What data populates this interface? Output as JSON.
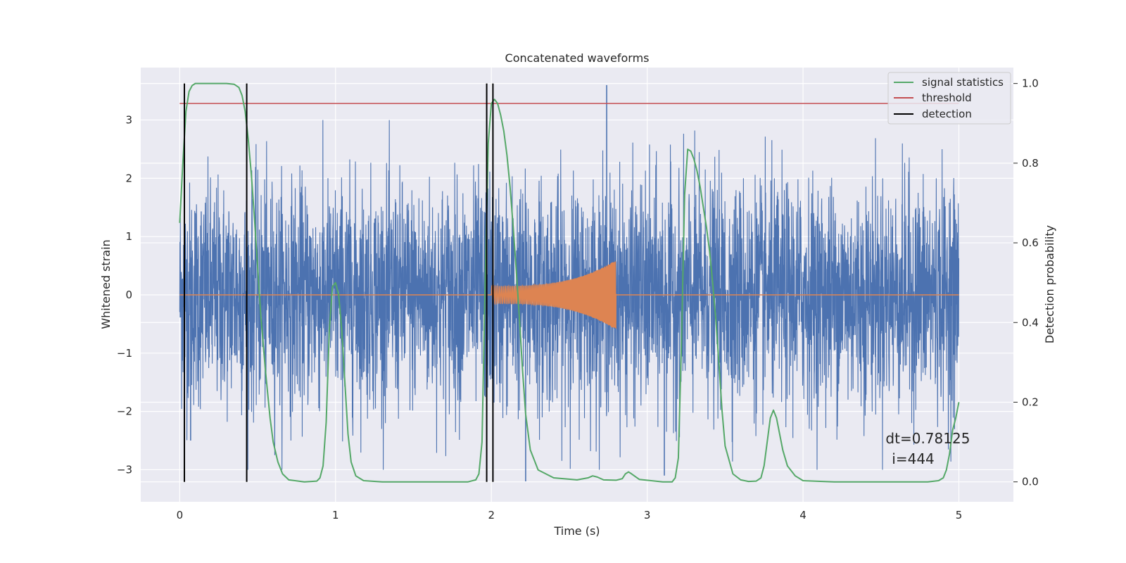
{
  "chart_data": {
    "type": "line",
    "title": "Concatenated waveforms",
    "xlabel": "Time (s)",
    "ylabel": "Whitened strain",
    "ylabel_right": "Detection probability",
    "xlim": [
      -0.25,
      5.35
    ],
    "ylim": [
      -3.55,
      3.9
    ],
    "ylim_right": [
      -0.05,
      1.04
    ],
    "x_ticks": [
      0,
      1,
      2,
      3,
      4,
      5
    ],
    "x_tick_labels": [
      "0",
      "1",
      "2",
      "3",
      "4",
      "5"
    ],
    "y_ticks": [
      -3,
      -2,
      -1,
      0,
      1,
      2,
      3
    ],
    "y_tick_labels": [
      "−3",
      "−2",
      "−1",
      "0",
      "1",
      "2",
      "3"
    ],
    "y_ticks_right": [
      0.0,
      0.2,
      0.4,
      0.6,
      0.8,
      1.0
    ],
    "y_tick_labels_right": [
      "0.0",
      "0.2",
      "0.4",
      "0.6",
      "0.8",
      "1.0"
    ],
    "grid": true,
    "legend_position": "top-right",
    "legend": [
      {
        "label": "signal statistics",
        "color": "#55a868"
      },
      {
        "label": "threshold",
        "color": "#c44e52"
      },
      {
        "label": "detection",
        "color": "#000000"
      }
    ],
    "noise": {
      "color": "#4c72b0",
      "x_range": [
        0,
        5
      ],
      "spikes": [
        {
          "x": 2.74,
          "y": 3.6
        },
        {
          "x": 2.22,
          "y": -3.2
        },
        {
          "x": 0.03,
          "y": -2.7
        },
        {
          "x": 3.11,
          "y": -3.1
        },
        {
          "x": 0.07,
          "y": -2.5
        }
      ]
    },
    "injected_signal": {
      "color": "#dd8452",
      "x_start": 2.0,
      "x_end": 2.8,
      "amplitude_start": 0.15,
      "amplitude_end": 0.6
    },
    "signal_statistics": {
      "color": "#55a868",
      "x": [
        0.0,
        0.02,
        0.04,
        0.06,
        0.08,
        0.1,
        0.15,
        0.2,
        0.3,
        0.35,
        0.38,
        0.4,
        0.42,
        0.44,
        0.46,
        0.48,
        0.5,
        0.52,
        0.55,
        0.58,
        0.6,
        0.63,
        0.66,
        0.7,
        0.8,
        0.88,
        0.9,
        0.92,
        0.94,
        0.96,
        0.98,
        1.0,
        1.02,
        1.04,
        1.06,
        1.08,
        1.1,
        1.13,
        1.18,
        1.3,
        1.5,
        1.7,
        1.85,
        1.9,
        1.92,
        1.94,
        1.96,
        1.98,
        2.0,
        2.02,
        2.04,
        2.06,
        2.08,
        2.1,
        2.12,
        2.14,
        2.16,
        2.18,
        2.2,
        2.22,
        2.25,
        2.3,
        2.4,
        2.55,
        2.62,
        2.65,
        2.68,
        2.72,
        2.8,
        2.84,
        2.86,
        2.88,
        2.9,
        2.95,
        3.1,
        3.16,
        3.18,
        3.2,
        3.22,
        3.24,
        3.26,
        3.28,
        3.3,
        3.32,
        3.34,
        3.36,
        3.38,
        3.4,
        3.42,
        3.44,
        3.46,
        3.48,
        3.5,
        3.55,
        3.6,
        3.65,
        3.7,
        3.73,
        3.75,
        3.77,
        3.79,
        3.81,
        3.83,
        3.85,
        3.87,
        3.9,
        3.95,
        4.0,
        4.2,
        4.5,
        4.8,
        4.87,
        4.9,
        4.92,
        4.94,
        4.96,
        4.98,
        5.0
      ],
      "y": [
        0.65,
        0.8,
        0.93,
        0.98,
        0.995,
        1.0,
        1.0,
        1.0,
        1.0,
        0.998,
        0.99,
        0.97,
        0.93,
        0.86,
        0.77,
        0.66,
        0.54,
        0.42,
        0.28,
        0.16,
        0.1,
        0.05,
        0.02,
        0.005,
        0.0,
        0.002,
        0.01,
        0.04,
        0.15,
        0.38,
        0.49,
        0.5,
        0.47,
        0.38,
        0.25,
        0.12,
        0.05,
        0.015,
        0.003,
        0.0,
        0.0,
        0.0,
        0.0,
        0.005,
        0.02,
        0.1,
        0.5,
        0.85,
        0.95,
        0.96,
        0.95,
        0.92,
        0.88,
        0.82,
        0.74,
        0.64,
        0.53,
        0.41,
        0.28,
        0.17,
        0.08,
        0.03,
        0.01,
        0.005,
        0.01,
        0.015,
        0.012,
        0.005,
        0.004,
        0.008,
        0.02,
        0.025,
        0.02,
        0.006,
        0.0,
        0.0,
        0.01,
        0.06,
        0.35,
        0.72,
        0.835,
        0.83,
        0.81,
        0.78,
        0.74,
        0.69,
        0.64,
        0.58,
        0.5,
        0.41,
        0.3,
        0.18,
        0.09,
        0.02,
        0.005,
        0.001,
        0.002,
        0.01,
        0.04,
        0.1,
        0.16,
        0.18,
        0.16,
        0.12,
        0.08,
        0.04,
        0.015,
        0.003,
        0.0,
        0.0,
        0.0,
        0.003,
        0.01,
        0.03,
        0.07,
        0.13,
        0.16,
        0.2
      ]
    },
    "threshold": {
      "color": "#c44e52",
      "value": 0.95,
      "x_range": [
        0,
        5
      ]
    },
    "detections": {
      "color": "#000000",
      "x": [
        0.03,
        0.43,
        1.97,
        2.01
      ]
    },
    "annotations": [
      {
        "text": "dt=0.78125",
        "x": 4.53,
        "y": -2.55
      },
      {
        "text": "i=444",
        "x": 4.57,
        "y": -2.9
      }
    ]
  }
}
